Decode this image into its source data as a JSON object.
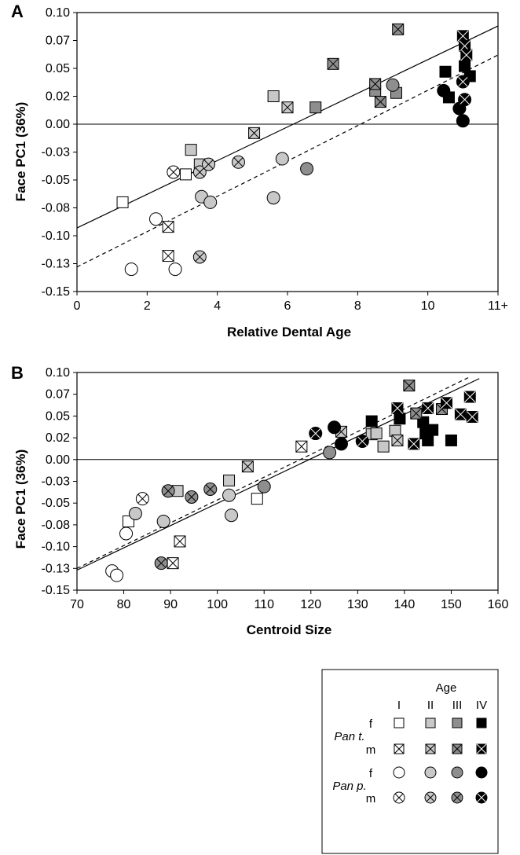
{
  "chart_data": [
    {
      "panel": "A",
      "type": "scatter",
      "xlabel": "Relative Dental Age",
      "ylabel": "Face PC1 (36%)",
      "xlim": [
        0,
        12
      ],
      "ylim": [
        -0.15,
        0.1
      ],
      "xticks": [
        0,
        2,
        4,
        6,
        8,
        10,
        12
      ],
      "xtick_labels": [
        "0",
        "2",
        "4",
        "6",
        "8",
        "10",
        "11+"
      ],
      "yticks": [
        -0.15,
        -0.125,
        -0.1,
        -0.075,
        -0.05,
        -0.025,
        0.0,
        0.025,
        0.05,
        0.075,
        0.1
      ],
      "ytick_labels": [
        "-0.15",
        "-0.13",
        "-0.10",
        "-0.08",
        "-0.05",
        "-0.03",
        "0.00",
        "0.02",
        "0.05",
        "0.07",
        "0.10"
      ],
      "hline": 0.0,
      "lines": [
        {
          "style": "solid",
          "x": [
            0,
            12
          ],
          "y": [
            -0.093,
            0.088
          ]
        },
        {
          "style": "dashed",
          "x": [
            0,
            12
          ],
          "y": [
            -0.128,
            0.062
          ]
        }
      ],
      "points": [
        {
          "x": 1.3,
          "y": -0.07,
          "species": "Pan t.",
          "sex": "f",
          "age": "I"
        },
        {
          "x": 3.1,
          "y": -0.045,
          "species": "Pan t.",
          "sex": "f",
          "age": "I"
        },
        {
          "x": 3.25,
          "y": -0.023,
          "species": "Pan t.",
          "sex": "f",
          "age": "II"
        },
        {
          "x": 3.5,
          "y": -0.036,
          "species": "Pan t.",
          "sex": "f",
          "age": "II"
        },
        {
          "x": 5.6,
          "y": 0.025,
          "species": "Pan t.",
          "sex": "f",
          "age": "II"
        },
        {
          "x": 6.8,
          "y": 0.015,
          "species": "Pan t.",
          "sex": "f",
          "age": "III"
        },
        {
          "x": 8.5,
          "y": 0.03,
          "species": "Pan t.",
          "sex": "f",
          "age": "III"
        },
        {
          "x": 9.1,
          "y": 0.028,
          "species": "Pan t.",
          "sex": "f",
          "age": "III"
        },
        {
          "x": 10.5,
          "y": 0.047,
          "species": "Pan t.",
          "sex": "f",
          "age": "IV"
        },
        {
          "x": 10.6,
          "y": 0.024,
          "species": "Pan t.",
          "sex": "f",
          "age": "IV"
        },
        {
          "x": 11.05,
          "y": 0.052,
          "species": "Pan t.",
          "sex": "f",
          "age": "IV"
        },
        {
          "x": 11.2,
          "y": 0.043,
          "species": "Pan t.",
          "sex": "f",
          "age": "IV"
        },
        {
          "x": 2.6,
          "y": -0.092,
          "species": "Pan t.",
          "sex": "m",
          "age": "I"
        },
        {
          "x": 2.6,
          "y": -0.118,
          "species": "Pan t.",
          "sex": "m",
          "age": "I"
        },
        {
          "x": 5.05,
          "y": -0.008,
          "species": "Pan t.",
          "sex": "m",
          "age": "II"
        },
        {
          "x": 6.0,
          "y": 0.015,
          "species": "Pan t.",
          "sex": "m",
          "age": "II"
        },
        {
          "x": 7.3,
          "y": 0.054,
          "species": "Pan t.",
          "sex": "m",
          "age": "III"
        },
        {
          "x": 8.5,
          "y": 0.036,
          "species": "Pan t.",
          "sex": "m",
          "age": "III"
        },
        {
          "x": 8.65,
          "y": 0.02,
          "species": "Pan t.",
          "sex": "m",
          "age": "III"
        },
        {
          "x": 9.15,
          "y": 0.085,
          "species": "Pan t.",
          "sex": "m",
          "age": "III"
        },
        {
          "x": 11.0,
          "y": 0.079,
          "species": "Pan t.",
          "sex": "m",
          "age": "IV"
        },
        {
          "x": 11.05,
          "y": 0.07,
          "species": "Pan t.",
          "sex": "m",
          "age": "IV"
        },
        {
          "x": 11.1,
          "y": 0.062,
          "species": "Pan t.",
          "sex": "m",
          "age": "IV"
        },
        {
          "x": 1.55,
          "y": -0.13,
          "species": "Pan p.",
          "sex": "f",
          "age": "I"
        },
        {
          "x": 2.25,
          "y": -0.085,
          "species": "Pan p.",
          "sex": "f",
          "age": "I"
        },
        {
          "x": 2.8,
          "y": -0.13,
          "species": "Pan p.",
          "sex": "f",
          "age": "I"
        },
        {
          "x": 3.55,
          "y": -0.065,
          "species": "Pan p.",
          "sex": "f",
          "age": "II"
        },
        {
          "x": 3.8,
          "y": -0.07,
          "species": "Pan p.",
          "sex": "f",
          "age": "II"
        },
        {
          "x": 5.6,
          "y": -0.066,
          "species": "Pan p.",
          "sex": "f",
          "age": "II"
        },
        {
          "x": 5.85,
          "y": -0.031,
          "species": "Pan p.",
          "sex": "f",
          "age": "II"
        },
        {
          "x": 6.55,
          "y": -0.04,
          "species": "Pan p.",
          "sex": "f",
          "age": "III"
        },
        {
          "x": 9.0,
          "y": 0.035,
          "species": "Pan p.",
          "sex": "f",
          "age": "III"
        },
        {
          "x": 10.45,
          "y": 0.03,
          "species": "Pan p.",
          "sex": "f",
          "age": "IV"
        },
        {
          "x": 10.9,
          "y": 0.014,
          "species": "Pan p.",
          "sex": "f",
          "age": "IV"
        },
        {
          "x": 11.0,
          "y": 0.003,
          "species": "Pan p.",
          "sex": "f",
          "age": "IV"
        },
        {
          "x": 2.75,
          "y": -0.043,
          "species": "Pan p.",
          "sex": "m",
          "age": "I"
        },
        {
          "x": 3.5,
          "y": -0.043,
          "species": "Pan p.",
          "sex": "m",
          "age": "II"
        },
        {
          "x": 3.5,
          "y": -0.119,
          "species": "Pan p.",
          "sex": "m",
          "age": "II"
        },
        {
          "x": 3.75,
          "y": -0.036,
          "species": "Pan p.",
          "sex": "m",
          "age": "II"
        },
        {
          "x": 4.6,
          "y": -0.034,
          "species": "Pan p.",
          "sex": "m",
          "age": "II"
        },
        {
          "x": 11.0,
          "y": 0.038,
          "species": "Pan p.",
          "sex": "m",
          "age": "IV"
        },
        {
          "x": 11.05,
          "y": 0.022,
          "species": "Pan p.",
          "sex": "m",
          "age": "IV"
        }
      ]
    },
    {
      "panel": "B",
      "type": "scatter",
      "xlabel": "Centroid Size",
      "ylabel": "Face PC1 (36%)",
      "xlim": [
        70,
        160
      ],
      "ylim": [
        -0.15,
        0.1
      ],
      "xticks": [
        70,
        80,
        90,
        100,
        110,
        120,
        130,
        140,
        150,
        160
      ],
      "xtick_labels": [
        "70",
        "80",
        "90",
        "100",
        "110",
        "120",
        "130",
        "140",
        "150",
        "160"
      ],
      "yticks": [
        -0.15,
        -0.125,
        -0.1,
        -0.075,
        -0.05,
        -0.025,
        0.0,
        0.025,
        0.05,
        0.075,
        0.1
      ],
      "ytick_labels": [
        "-0.15",
        "-0.13",
        "-0.10",
        "-0.08",
        "-0.05",
        "-0.03",
        "0.00",
        "0.02",
        "0.05",
        "0.07",
        "0.10"
      ],
      "hline": 0.0,
      "lines": [
        {
          "style": "solid",
          "x": [
            70,
            156
          ],
          "y": [
            -0.127,
            0.093
          ]
        },
        {
          "style": "dashed",
          "x": [
            70,
            154
          ],
          "y": [
            -0.125,
            0.095
          ]
        }
      ],
      "points": [
        {
          "x": 81.0,
          "y": -0.071,
          "species": "Pan t.",
          "sex": "f",
          "age": "I"
        },
        {
          "x": 108.5,
          "y": -0.045,
          "species": "Pan t.",
          "sex": "f",
          "age": "I"
        },
        {
          "x": 91.5,
          "y": -0.036,
          "species": "Pan t.",
          "sex": "f",
          "age": "II"
        },
        {
          "x": 102.5,
          "y": -0.024,
          "species": "Pan t.",
          "sex": "f",
          "age": "II"
        },
        {
          "x": 133.0,
          "y": 0.029,
          "species": "Pan t.",
          "sex": "f",
          "age": "II"
        },
        {
          "x": 134.0,
          "y": 0.03,
          "species": "Pan t.",
          "sex": "f",
          "age": "II"
        },
        {
          "x": 135.5,
          "y": 0.015,
          "species": "Pan t.",
          "sex": "f",
          "age": "II"
        },
        {
          "x": 138.0,
          "y": 0.033,
          "species": "Pan t.",
          "sex": "f",
          "age": "II"
        },
        {
          "x": 133.0,
          "y": 0.044,
          "species": "Pan t.",
          "sex": "f",
          "age": "IV"
        },
        {
          "x": 139.0,
          "y": 0.047,
          "species": "Pan t.",
          "sex": "f",
          "age": "IV"
        },
        {
          "x": 144.0,
          "y": 0.043,
          "species": "Pan t.",
          "sex": "f",
          "age": "IV"
        },
        {
          "x": 144.5,
          "y": 0.03,
          "species": "Pan t.",
          "sex": "f",
          "age": "IV"
        },
        {
          "x": 145.0,
          "y": 0.022,
          "species": "Pan t.",
          "sex": "f",
          "age": "IV"
        },
        {
          "x": 146.0,
          "y": 0.034,
          "species": "Pan t.",
          "sex": "f",
          "age": "IV"
        },
        {
          "x": 150.0,
          "y": 0.022,
          "species": "Pan t.",
          "sex": "f",
          "age": "IV"
        },
        {
          "x": 92.0,
          "y": -0.094,
          "species": "Pan t.",
          "sex": "m",
          "age": "I"
        },
        {
          "x": 90.5,
          "y": -0.119,
          "species": "Pan t.",
          "sex": "m",
          "age": "I"
        },
        {
          "x": 118.0,
          "y": 0.015,
          "species": "Pan t.",
          "sex": "m",
          "age": "I"
        },
        {
          "x": 106.5,
          "y": -0.008,
          "species": "Pan t.",
          "sex": "m",
          "age": "II"
        },
        {
          "x": 126.5,
          "y": 0.032,
          "species": "Pan t.",
          "sex": "m",
          "age": "II"
        },
        {
          "x": 138.5,
          "y": 0.022,
          "species": "Pan t.",
          "sex": "m",
          "age": "II"
        },
        {
          "x": 141.0,
          "y": 0.085,
          "species": "Pan t.",
          "sex": "m",
          "age": "III"
        },
        {
          "x": 142.5,
          "y": 0.053,
          "species": "Pan t.",
          "sex": "m",
          "age": "III"
        },
        {
          "x": 148.0,
          "y": 0.058,
          "species": "Pan t.",
          "sex": "m",
          "age": "III"
        },
        {
          "x": 138.5,
          "y": 0.059,
          "species": "Pan t.",
          "sex": "m",
          "age": "IV"
        },
        {
          "x": 142.0,
          "y": 0.018,
          "species": "Pan t.",
          "sex": "m",
          "age": "IV"
        },
        {
          "x": 145.0,
          "y": 0.059,
          "species": "Pan t.",
          "sex": "m",
          "age": "IV"
        },
        {
          "x": 149.0,
          "y": 0.065,
          "species": "Pan t.",
          "sex": "m",
          "age": "IV"
        },
        {
          "x": 152.0,
          "y": 0.052,
          "species": "Pan t.",
          "sex": "m",
          "age": "IV"
        },
        {
          "x": 154.0,
          "y": 0.072,
          "species": "Pan t.",
          "sex": "m",
          "age": "IV"
        },
        {
          "x": 154.5,
          "y": 0.049,
          "species": "Pan t.",
          "sex": "m",
          "age": "IV"
        },
        {
          "x": 77.5,
          "y": -0.128,
          "species": "Pan p.",
          "sex": "f",
          "age": "I"
        },
        {
          "x": 78.5,
          "y": -0.133,
          "species": "Pan p.",
          "sex": "f",
          "age": "I"
        },
        {
          "x": 80.5,
          "y": -0.085,
          "species": "Pan p.",
          "sex": "f",
          "age": "I"
        },
        {
          "x": 82.5,
          "y": -0.062,
          "species": "Pan p.",
          "sex": "f",
          "age": "II"
        },
        {
          "x": 88.5,
          "y": -0.071,
          "species": "Pan p.",
          "sex": "f",
          "age": "II"
        },
        {
          "x": 102.5,
          "y": -0.041,
          "species": "Pan p.",
          "sex": "f",
          "age": "II"
        },
        {
          "x": 103.0,
          "y": -0.064,
          "species": "Pan p.",
          "sex": "f",
          "age": "II"
        },
        {
          "x": 110.0,
          "y": -0.031,
          "species": "Pan p.",
          "sex": "f",
          "age": "III"
        },
        {
          "x": 124.0,
          "y": 0.008,
          "species": "Pan p.",
          "sex": "f",
          "age": "III"
        },
        {
          "x": 125.0,
          "y": 0.037,
          "species": "Pan p.",
          "sex": "f",
          "age": "IV"
        },
        {
          "x": 126.5,
          "y": 0.018,
          "species": "Pan p.",
          "sex": "f",
          "age": "IV"
        },
        {
          "x": 84.0,
          "y": -0.045,
          "species": "Pan p.",
          "sex": "m",
          "age": "I"
        },
        {
          "x": 88.0,
          "y": -0.119,
          "species": "Pan p.",
          "sex": "m",
          "age": "III"
        },
        {
          "x": 89.5,
          "y": -0.036,
          "species": "Pan p.",
          "sex": "m",
          "age": "III"
        },
        {
          "x": 94.5,
          "y": -0.043,
          "species": "Pan p.",
          "sex": "m",
          "age": "III"
        },
        {
          "x": 98.5,
          "y": -0.034,
          "species": "Pan p.",
          "sex": "m",
          "age": "III"
        },
        {
          "x": 121.0,
          "y": 0.03,
          "species": "Pan p.",
          "sex": "m",
          "age": "IV"
        },
        {
          "x": 131.0,
          "y": 0.021,
          "species": "Pan p.",
          "sex": "m",
          "age": "IV"
        }
      ]
    }
  ],
  "legend": {
    "title": "Age",
    "columns": [
      "I",
      "II",
      "III",
      "IV"
    ],
    "groups": [
      {
        "label": "Pan t.",
        "rows": [
          {
            "sex": "f",
            "marker": "square"
          },
          {
            "sex": "m",
            "marker": "square-x"
          }
        ]
      },
      {
        "label": "Pan p.",
        "rows": [
          {
            "sex": "f",
            "marker": "circle"
          },
          {
            "sex": "m",
            "marker": "circle-x"
          }
        ]
      }
    ]
  },
  "colors": {
    "I": "#ffffff",
    "II": "#c8c8c8",
    "III": "#8e8e8e",
    "IV": "#000000"
  }
}
